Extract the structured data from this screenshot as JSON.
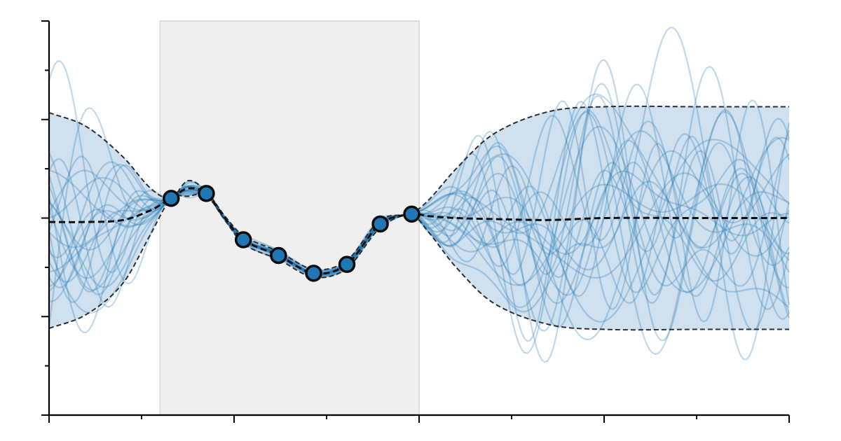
{
  "chart_data": {
    "type": "line",
    "title": "",
    "xlabel": "",
    "ylabel": "",
    "xlim": [
      0,
      4
    ],
    "ylim": [
      -2,
      2
    ],
    "xticks_major": [
      0,
      1,
      2,
      3,
      4
    ],
    "xticks_minor": [
      0.5,
      1.5,
      2.5,
      3.5
    ],
    "yticks_major": [
      -1,
      0,
      1
    ],
    "yticks_minor": [
      -1.5,
      -0.5,
      0.5,
      1.5
    ],
    "tick_labels_visible": false,
    "grid": false,
    "legend": "none",
    "shaded_region": {
      "x_start": 0.6,
      "x_end": 2.0,
      "color": "#efefef"
    },
    "observations": {
      "x": [
        0.66,
        0.85,
        1.05,
        1.24,
        1.43,
        1.61,
        1.79,
        1.96
      ],
      "y": [
        0.2,
        0.25,
        -0.22,
        -0.38,
        -0.56,
        -0.47,
        -0.06,
        0.04
      ]
    },
    "prior": {
      "mean": 0.0,
      "band_half_width": 1.13
    },
    "series": [
      {
        "role": "posterior mean",
        "x": [
          0,
          0.2,
          0.4,
          0.55,
          0.66,
          0.75,
          0.85,
          0.95,
          1.05,
          1.24,
          1.43,
          1.61,
          1.79,
          1.96,
          2.05,
          2.2,
          2.4,
          2.7,
          3.0,
          3.5,
          4.0
        ],
        "y": [
          -0.04,
          -0.04,
          -0.02,
          0.08,
          0.2,
          0.3,
          0.25,
          0.0,
          -0.22,
          -0.38,
          -0.56,
          -0.47,
          -0.06,
          0.04,
          0.02,
          0.0,
          -0.01,
          -0.02,
          0.0,
          0.0,
          0.0
        ]
      },
      {
        "role": "upper bound",
        "x": [
          0,
          0.2,
          0.4,
          0.55,
          0.66,
          0.75,
          0.85,
          0.95,
          1.05,
          1.24,
          1.43,
          1.61,
          1.79,
          1.96,
          2.05,
          2.2,
          2.4,
          2.7,
          3.0,
          3.5,
          4.0
        ],
        "y": [
          1.07,
          0.93,
          0.62,
          0.3,
          0.2,
          0.38,
          0.27,
          0.02,
          -0.18,
          -0.34,
          -0.52,
          -0.43,
          -0.02,
          0.05,
          0.18,
          0.5,
          0.85,
          1.08,
          1.13,
          1.13,
          1.13
        ]
      },
      {
        "role": "lower bound",
        "x": [
          0,
          0.2,
          0.4,
          0.55,
          0.66,
          0.75,
          0.85,
          0.95,
          1.05,
          1.24,
          1.43,
          1.61,
          1.79,
          1.96,
          2.05,
          2.2,
          2.4,
          2.7,
          3.0,
          3.5,
          4.0
        ],
        "y": [
          -1.12,
          -0.98,
          -0.66,
          -0.16,
          0.2,
          0.22,
          0.23,
          -0.02,
          -0.26,
          -0.42,
          -0.6,
          -0.51,
          -0.1,
          0.03,
          -0.14,
          -0.5,
          -0.86,
          -1.08,
          -1.13,
          -1.13,
          -1.13
        ]
      }
    ],
    "samples": {
      "count": 24
    },
    "colors": {
      "band": "#cfe0ee",
      "sample_line": "#1f77b4",
      "point_fill": "#1f77b4",
      "shaded": "#efefef"
    }
  }
}
